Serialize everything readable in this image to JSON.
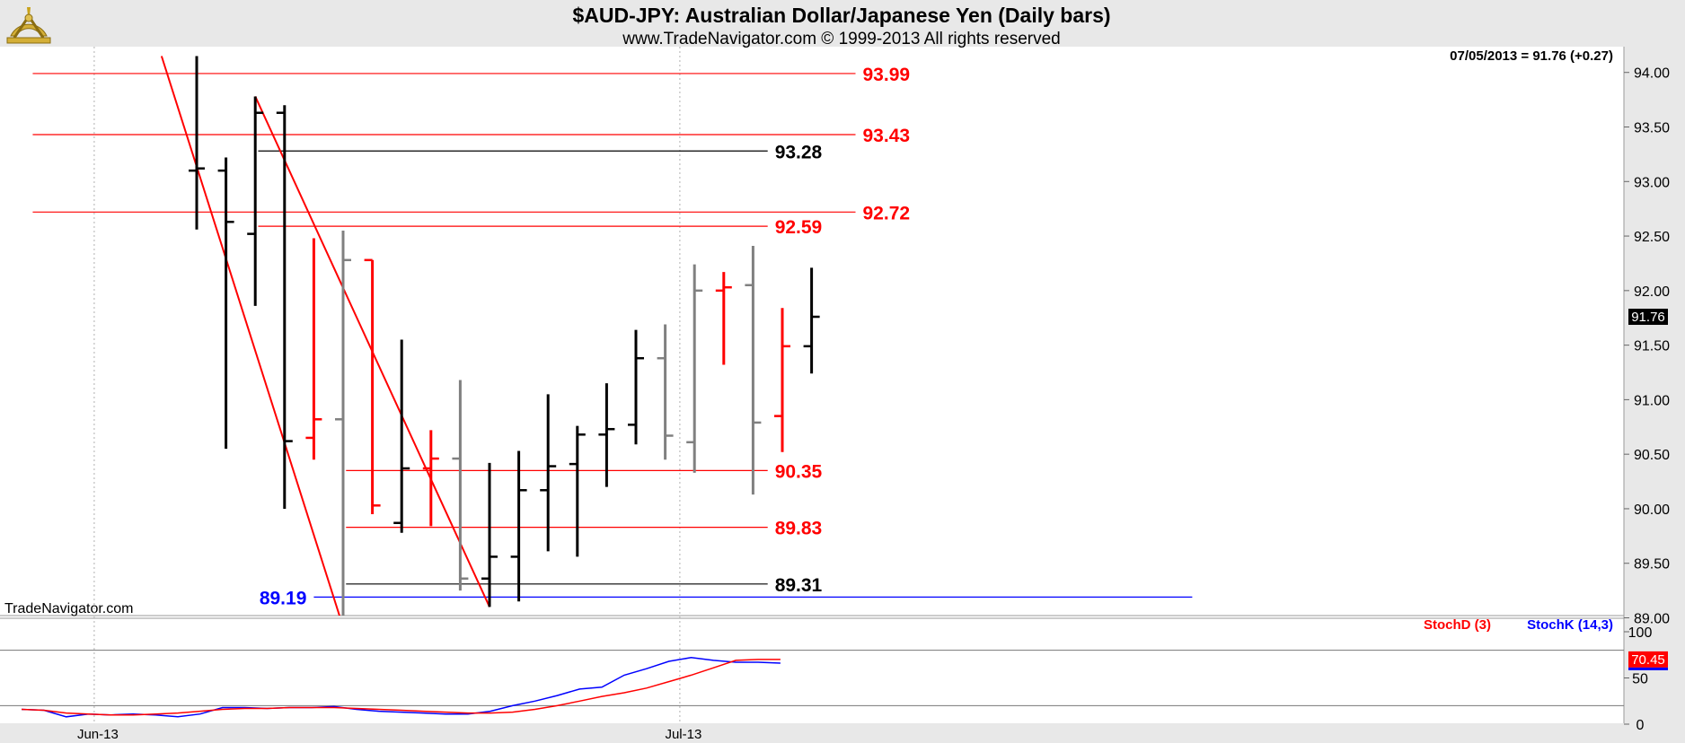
{
  "header": {
    "title": "$AUD-JPY:  Australian Dollar/Japanese Yen  (Daily bars)",
    "subtitle": "www.TradeNavigator.com © 1999-2013 All rights reserved",
    "last_quote": "07/05/2013 = 91.76 (+0.27)",
    "watermark": "TradeNavigator.com",
    "logo_icon": "sextant-logo-icon"
  },
  "chart_data": [
    {
      "type": "ohlc",
      "title": "$AUD-JPY:  Australian Dollar/Japanese Yen  (Daily bars)",
      "ylim": [
        89.0,
        94.15
      ],
      "yticks": [
        "94.00",
        "93.50",
        "93.00",
        "92.50",
        "92.00",
        "91.50",
        "91.00",
        "90.50",
        "90.00",
        "89.50",
        "89.00"
      ],
      "xticks": [
        {
          "label": "Jun-13",
          "index": -3.5
        },
        {
          "label": "Jul-13",
          "index": 16.5
        }
      ],
      "last_price_badge": "91.76",
      "colors": {
        "up": "#000000",
        "down": "#ff0000",
        "inside": "#808080",
        "level_red": "#ff0000",
        "level_blue": "#0000ff",
        "level_black": "#000000"
      },
      "bars": [
        {
          "o": 93.1,
          "h": 94.15,
          "l": 92.56,
          "c": 93.12,
          "color": "black"
        },
        {
          "o": 93.1,
          "h": 93.22,
          "l": 90.55,
          "c": 92.63,
          "color": "black"
        },
        {
          "o": 92.52,
          "h": 93.78,
          "l": 91.86,
          "c": 93.63,
          "color": "black"
        },
        {
          "o": 93.63,
          "h": 93.7,
          "l": 90.0,
          "c": 90.62,
          "color": "black"
        },
        {
          "o": 90.65,
          "h": 92.48,
          "l": 90.45,
          "c": 90.82,
          "color": "red"
        },
        {
          "o": 90.82,
          "h": 92.55,
          "l": 89.0,
          "c": 92.28,
          "color": "gray"
        },
        {
          "o": 92.28,
          "h": 92.28,
          "l": 89.95,
          "c": 90.03,
          "color": "red"
        },
        {
          "o": 89.87,
          "h": 91.55,
          "l": 89.78,
          "c": 90.37,
          "color": "black"
        },
        {
          "o": 90.37,
          "h": 90.72,
          "l": 89.84,
          "c": 90.46,
          "color": "red"
        },
        {
          "o": 90.46,
          "h": 91.18,
          "l": 89.25,
          "c": 89.36,
          "color": "gray"
        },
        {
          "o": 89.36,
          "h": 90.42,
          "l": 89.1,
          "c": 89.56,
          "color": "black"
        },
        {
          "o": 89.56,
          "h": 90.53,
          "l": 89.15,
          "c": 90.17,
          "color": "black"
        },
        {
          "o": 90.17,
          "h": 91.05,
          "l": 89.61,
          "c": 90.39,
          "color": "black"
        },
        {
          "o": 90.41,
          "h": 90.76,
          "l": 89.56,
          "c": 90.68,
          "color": "black"
        },
        {
          "o": 90.68,
          "h": 91.15,
          "l": 90.2,
          "c": 90.73,
          "color": "black"
        },
        {
          "o": 90.77,
          "h": 91.64,
          "l": 90.59,
          "c": 91.38,
          "color": "black"
        },
        {
          "o": 91.38,
          "h": 91.69,
          "l": 90.45,
          "c": 90.67,
          "color": "gray"
        },
        {
          "o": 90.61,
          "h": 92.24,
          "l": 90.33,
          "c": 92.0,
          "color": "gray"
        },
        {
          "o": 92.0,
          "h": 92.17,
          "l": 91.32,
          "c": 92.03,
          "color": "red"
        },
        {
          "o": 92.05,
          "h": 92.41,
          "l": 90.13,
          "c": 90.79,
          "color": "gray"
        },
        {
          "o": 90.85,
          "h": 91.84,
          "l": 90.52,
          "c": 91.49,
          "color": "red"
        },
        {
          "o": 91.49,
          "h": 92.21,
          "l": 91.24,
          "c": 91.76,
          "color": "black"
        }
      ],
      "levels": [
        {
          "label": "93.99",
          "value": 93.99,
          "color": "red",
          "x0": -5.6,
          "x1": 22.5,
          "label_side": "right"
        },
        {
          "label": "93.43",
          "value": 93.43,
          "color": "red",
          "x0": -5.6,
          "x1": 22.5,
          "label_side": "right"
        },
        {
          "label": "93.28",
          "value": 93.28,
          "color": "black",
          "x0": 2.1,
          "x1": 19.5,
          "label_side": "right"
        },
        {
          "label": "92.72",
          "value": 92.72,
          "color": "red",
          "x0": -5.6,
          "x1": 22.5,
          "label_side": "right"
        },
        {
          "label": "92.59",
          "value": 92.59,
          "color": "red",
          "x0": 2.1,
          "x1": 19.5,
          "label_side": "right"
        },
        {
          "label": "90.35",
          "value": 90.35,
          "color": "red",
          "x0": 5.1,
          "x1": 19.5,
          "label_side": "right"
        },
        {
          "label": "89.83",
          "value": 89.83,
          "color": "red",
          "x0": 5.1,
          "x1": 19.5,
          "label_side": "right"
        },
        {
          "label": "89.31",
          "value": 89.31,
          "color": "black",
          "x0": 5.1,
          "x1": 19.5,
          "label_side": "right"
        },
        {
          "label": "89.19",
          "value": 89.19,
          "color": "blue",
          "x0": 4.0,
          "x1": 34.0,
          "label_side": "left"
        }
      ],
      "trendlines": [
        {
          "color": "red",
          "from": {
            "index": -1.2,
            "value": 94.15
          },
          "to": {
            "index": 4.9,
            "value": 89.0
          }
        },
        {
          "color": "red",
          "from": {
            "index": 2.0,
            "value": 93.78
          },
          "to": {
            "index": 10.0,
            "value": 89.1
          }
        }
      ]
    },
    {
      "type": "line",
      "title": "",
      "ylim": [
        0,
        100
      ],
      "yticks": [
        "100",
        "50",
        "0"
      ],
      "reference_lines": [
        80,
        20
      ],
      "last_value_badge": "70.45",
      "series": [
        {
          "name": "StochD (3)",
          "color": "#ff0000",
          "values": [
            16,
            15,
            12,
            11,
            10,
            10,
            11,
            12,
            14,
            16,
            17,
            17,
            18,
            18,
            18,
            17,
            16,
            15,
            14,
            13,
            12,
            12,
            13,
            16,
            20,
            25,
            30,
            34,
            39,
            46,
            53,
            61,
            69,
            70,
            70
          ]
        },
        {
          "name": "StochK (14,3)",
          "color": "#0000ff",
          "values": [
            16,
            15,
            8,
            11,
            10,
            11,
            10,
            8,
            11,
            18,
            18,
            17,
            18,
            18,
            19,
            16,
            14,
            13,
            12,
            11,
            11,
            14,
            20,
            25,
            31,
            38,
            40,
            53,
            60,
            68,
            72,
            69,
            67,
            67,
            66
          ]
        }
      ]
    }
  ]
}
